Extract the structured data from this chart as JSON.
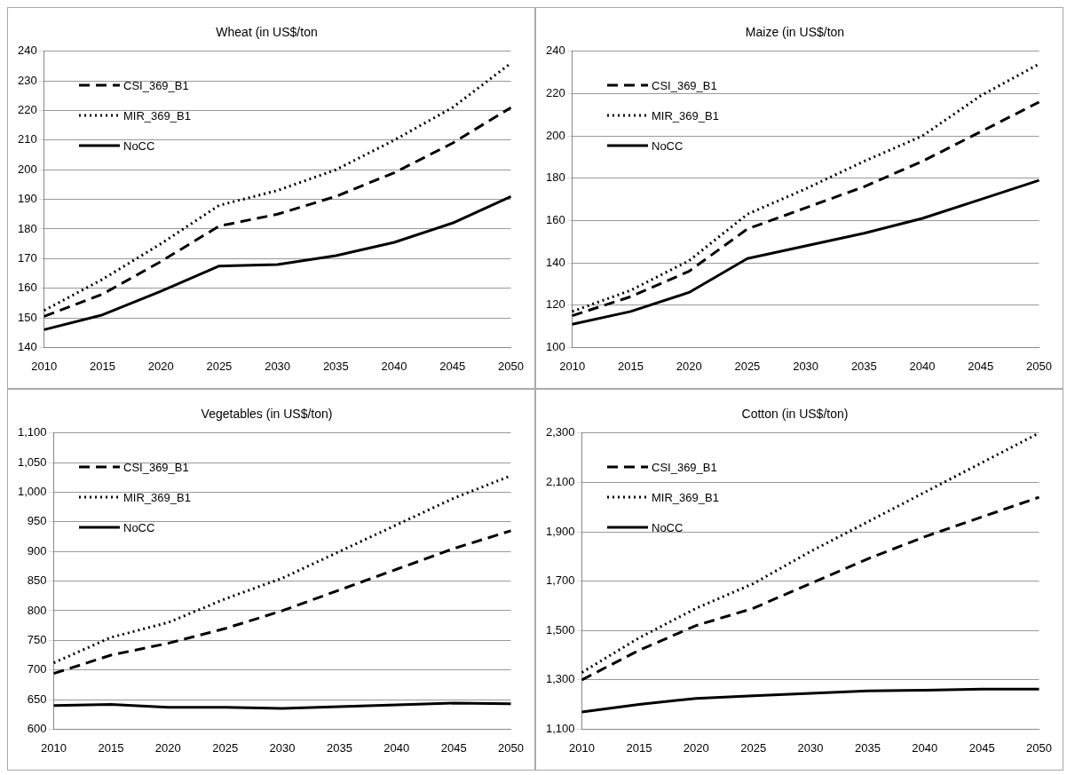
{
  "chart_data": [
    {
      "type": "line",
      "title": "Wheat (in US$/ton",
      "categories": [
        "2010",
        "2015",
        "2020",
        "2025",
        "2030",
        "2035",
        "2040",
        "2045",
        "2050"
      ],
      "ylim": [
        140,
        240
      ],
      "yticks": [
        140,
        150,
        160,
        170,
        180,
        190,
        200,
        210,
        220,
        230,
        240
      ],
      "grid": "y",
      "legend": "top left",
      "marker": "none",
      "series": [
        {
          "name": "CSI_369_B1",
          "color": "#000000",
          "line_style": "dashed",
          "values": [
            150.5,
            158,
            169,
            181,
            185,
            191,
            199,
            209,
            221
          ]
        },
        {
          "name": "MIR_369_B1",
          "color": "#000000",
          "line_style": "dotted",
          "values": [
            152.5,
            163,
            175,
            188,
            193,
            200,
            210,
            221,
            236
          ]
        },
        {
          "name": "NoCC",
          "color": "#000000",
          "line_style": "solid",
          "values": [
            146,
            151,
            159,
            167.5,
            168,
            171,
            175.5,
            182,
            191
          ]
        }
      ]
    },
    {
      "type": "line",
      "title": "Maize (in US$/ton",
      "categories": [
        "2010",
        "2015",
        "2020",
        "2025",
        "2030",
        "2035",
        "2040",
        "2045",
        "2050"
      ],
      "ylim": [
        100,
        240
      ],
      "yticks": [
        100,
        120,
        140,
        160,
        180,
        200,
        220,
        240
      ],
      "grid": "y",
      "legend": "top left",
      "marker": "none",
      "series": [
        {
          "name": "CSI_369_B1",
          "color": "#000000",
          "line_style": "dashed",
          "values": [
            115,
            124,
            136,
            156,
            166,
            176,
            188,
            202,
            216
          ]
        },
        {
          "name": "MIR_369_B1",
          "color": "#000000",
          "line_style": "dotted",
          "values": [
            117,
            127,
            141,
            163,
            175,
            188,
            200,
            219,
            234
          ]
        },
        {
          "name": "NoCC",
          "color": "#000000",
          "line_style": "solid",
          "values": [
            111,
            117,
            126,
            142,
            148,
            154,
            161,
            170,
            179
          ]
        }
      ]
    },
    {
      "type": "line",
      "title": "Vegetables (in US$/ton)",
      "categories": [
        "2010",
        "2015",
        "2020",
        "2025",
        "2030",
        "2035",
        "2040",
        "2045",
        "2050"
      ],
      "ylim": [
        600,
        1100
      ],
      "yticks": [
        600,
        650,
        700,
        750,
        800,
        850,
        900,
        950,
        {
          "value": 1000,
          "label": "1,000"
        },
        {
          "value": 1050,
          "label": "1,050"
        },
        {
          "value": 1100,
          "label": "1,100"
        }
      ],
      "grid": "y",
      "legend": "top left",
      "marker": "none",
      "series": [
        {
          "name": "CSI_369_B1",
          "color": "#000000",
          "line_style": "dashed",
          "values": [
            694,
            725,
            745,
            770,
            800,
            835,
            870,
            905,
            935
          ]
        },
        {
          "name": "MIR_369_B1",
          "color": "#000000",
          "line_style": "dotted",
          "values": [
            712,
            755,
            780,
            820,
            855,
            900,
            945,
            990,
            1028
          ]
        },
        {
          "name": "NoCC",
          "color": "#000000",
          "line_style": "solid",
          "values": [
            640,
            642,
            637,
            637,
            635,
            638,
            641,
            644,
            643
          ]
        }
      ]
    },
    {
      "type": "line",
      "title": "Cotton (in US$/ton)",
      "categories": [
        "2010",
        "2015",
        "2020",
        "2025",
        "2030",
        "2035",
        "2040",
        "2045",
        "2050"
      ],
      "ylim": [
        1100,
        2300
      ],
      "yticks": [
        {
          "value": 1100,
          "label": "1,100"
        },
        {
          "value": 1300,
          "label": "1,300"
        },
        {
          "value": 1500,
          "label": "1,500"
        },
        {
          "value": 1700,
          "label": "1,700"
        },
        {
          "value": 1900,
          "label": "1,900"
        },
        {
          "value": 2100,
          "label": "2,100"
        },
        {
          "value": 2300,
          "label": "2,300"
        }
      ],
      "grid": "y",
      "legend": "top left",
      "marker": "none",
      "series": [
        {
          "name": "CSI_369_B1",
          "color": "#000000",
          "line_style": "dashed",
          "values": [
            1300,
            1420,
            1520,
            1590,
            1690,
            1790,
            1880,
            1960,
            2040
          ]
        },
        {
          "name": "MIR_369_B1",
          "color": "#000000",
          "line_style": "dotted",
          "values": [
            1330,
            1470,
            1590,
            1690,
            1820,
            1940,
            2060,
            2180,
            2300
          ]
        },
        {
          "name": "NoCC",
          "color": "#000000",
          "line_style": "solid",
          "values": [
            1170,
            1200,
            1225,
            1235,
            1245,
            1255,
            1258,
            1262,
            1262
          ]
        }
      ]
    }
  ]
}
